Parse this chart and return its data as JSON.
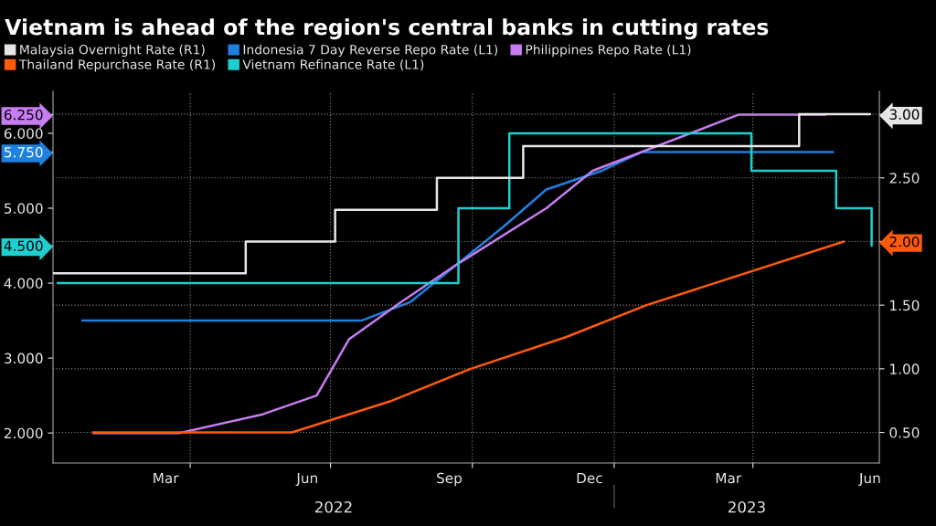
{
  "chart_data": {
    "type": "line",
    "title": "Vietnam is ahead of the region's central banks in cutting rates",
    "series": [
      {
        "name": "Malaysia Overnight Rate (R1)",
        "type": "step",
        "axis": "y2",
        "color": "#e6e6e6",
        "x": [
          "2022-01-02",
          "2022-05-07",
          "2022-07-04",
          "2022-09-08",
          "2022-11-03",
          "2023-05-01",
          "2023-06-16"
        ],
        "values": [
          1.75,
          2.0,
          2.25,
          2.5,
          2.75,
          3.0,
          3.0
        ]
      },
      {
        "name": "Indonesia 7 Day Reverse Repo Rate (L1)",
        "color": "#1f80e0",
        "x": [
          "2022-01-21",
          "2022-07-21",
          "2022-08-22",
          "2022-09-21",
          "2022-10-21",
          "2022-11-18",
          "2022-12-24",
          "2023-01-19",
          "2023-05-23"
        ],
        "values": [
          3.5,
          3.5,
          3.75,
          4.25,
          4.75,
          5.25,
          5.5,
          5.75,
          5.75
        ]
      },
      {
        "name": "Philippines Repo Rate (L1)",
        "color": "#c77cf2",
        "x": [
          "2022-01-28",
          "2022-03-25",
          "2022-05-18",
          "2022-06-22",
          "2022-07-13",
          "2022-08-16",
          "2022-09-21",
          "2022-11-18",
          "2022-12-18",
          "2023-03-23",
          "2023-05-18"
        ],
        "values": [
          2.0,
          2.0,
          2.25,
          2.5,
          3.25,
          3.75,
          4.25,
          5.0,
          5.5,
          6.25,
          6.25
        ]
      },
      {
        "name": "Thailand Repurchase Rate (R1)",
        "axis": "y2",
        "color": "#ff5a0a",
        "x": [
          "2022-01-28",
          "2022-06-06",
          "2022-08-10",
          "2022-09-30",
          "2022-12-01",
          "2023-01-22",
          "2023-05-30"
        ],
        "values": [
          0.5,
          0.5,
          0.75,
          1.0,
          1.25,
          1.5,
          2.0
        ]
      },
      {
        "name": "Vietnam Refinance Rate (L1)",
        "type": "step",
        "color": "#1fcfcf",
        "x": [
          "2022-01-05",
          "2022-09-22",
          "2022-10-25",
          "2023-03-31",
          "2023-05-25",
          "2023-06-17"
        ],
        "values": [
          4.0,
          5.0,
          6.0,
          5.5,
          5.0,
          4.5
        ]
      }
    ],
    "xlim": [
      "2022-01-02",
      "2023-06-22"
    ],
    "xticks": [
      {
        "value": "2022-03-16",
        "label": "Mar"
      },
      {
        "value": "2022-04-01",
        "label": null
      },
      {
        "value": "2022-06-16",
        "label": "Jun"
      },
      {
        "value": "2022-07-01",
        "label": null
      },
      {
        "value": "2022-09-16",
        "label": "Sep"
      },
      {
        "value": "2022-10-01",
        "label": null
      },
      {
        "value": "2022-12-16",
        "label": "Dec"
      },
      {
        "value": "2023-01-01",
        "label": null
      },
      {
        "value": "2023-03-16",
        "label": "Mar"
      },
      {
        "value": "2023-04-01",
        "label": null
      },
      {
        "value": "2023-06-16",
        "label": "Jun"
      }
    ],
    "ylim": [
      1.6,
      6.56
    ],
    "yticks": [
      {
        "value": 2,
        "label": "2.000"
      },
      {
        "value": 3,
        "label": "3.000"
      },
      {
        "value": 4,
        "label": "4.000"
      },
      {
        "value": 4.5,
        "label": "4.500"
      },
      {
        "value": 5,
        "label": "5.000"
      },
      {
        "value": 5.75,
        "label": "5.750"
      },
      {
        "value": 6,
        "label": "6.000"
      },
      {
        "value": 6.25,
        "label": "6.250"
      }
    ],
    "y2lim": [
      0.26,
      3.18
    ],
    "y2ticks": [
      {
        "value": 0.5,
        "label": "0.50"
      },
      {
        "value": 1.0,
        "label": "1.00"
      },
      {
        "value": 1.5,
        "label": "1.50"
      },
      {
        "value": 2.0,
        "label": "2.00"
      },
      {
        "value": 2.5,
        "label": "2.50"
      },
      {
        "value": 3.0,
        "label": "3.00"
      }
    ],
    "annotations": [
      "2022",
      "2023"
    ],
    "grid": true,
    "legend": "top left",
    "line_style": "solid",
    "marker": "none"
  }
}
